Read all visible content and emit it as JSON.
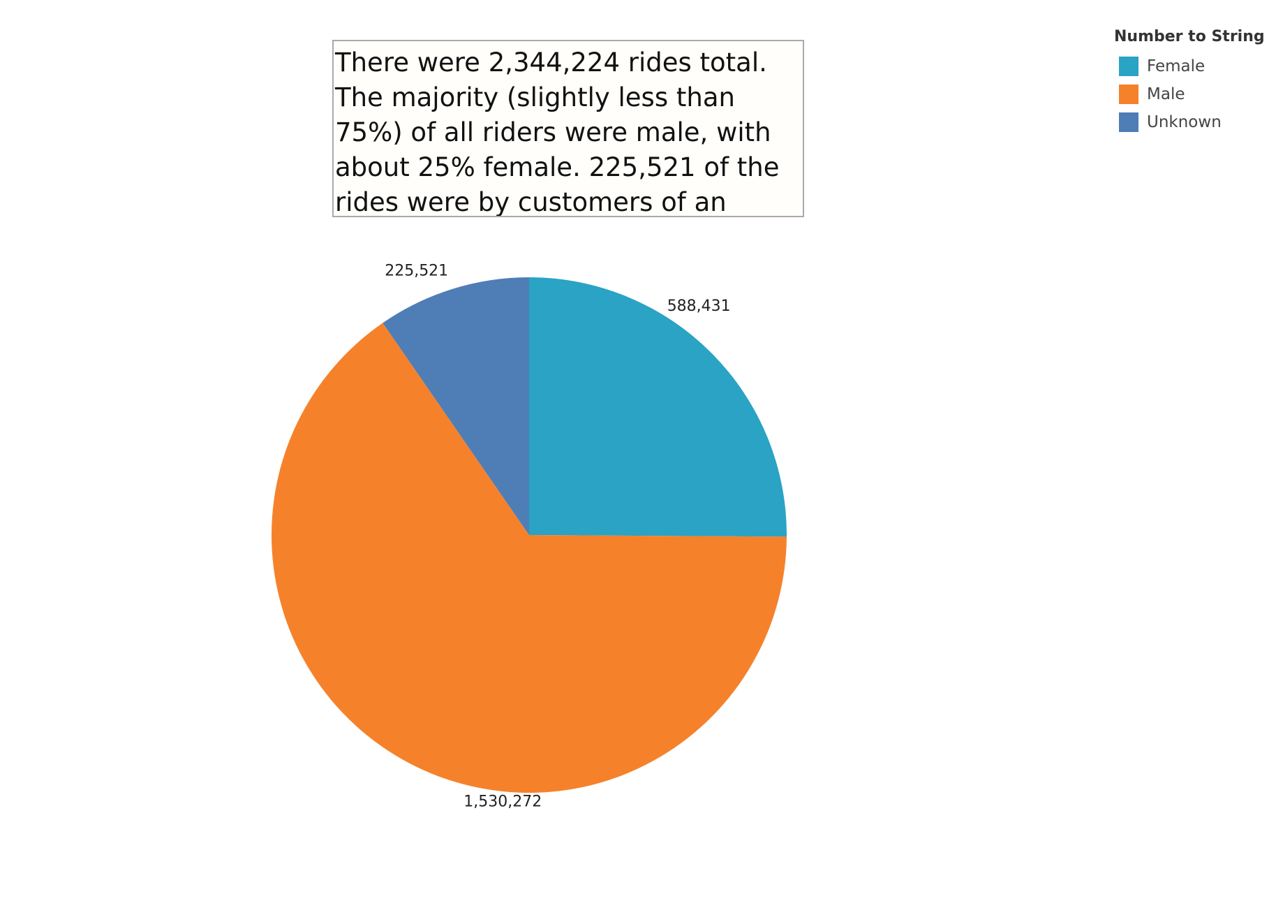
{
  "annotation": {
    "text": "There were 2,344,224 rides total. The majority (slightly less than 75%) of all riders were male, with about 25% female. 225,521 of the rides were by customers of an unknown gender."
  },
  "legend": {
    "title": "Number to String",
    "items": [
      {
        "label": "Female",
        "color": "#2aa3c4"
      },
      {
        "label": "Male",
        "color": "#f5822b"
      },
      {
        "label": "Unknown",
        "color": "#4f7db6"
      }
    ]
  },
  "chart_data": {
    "type": "pie",
    "title": "",
    "categories": [
      "Female",
      "Male",
      "Unknown"
    ],
    "values": [
      588431,
      1530272,
      225521
    ],
    "data_labels": [
      "588,431",
      "1,530,272",
      "225,521"
    ],
    "colors": [
      "#2aa3c4",
      "#f5822b",
      "#4f7db6"
    ],
    "start_angle": "12 o'clock",
    "direction": "clockwise",
    "legend_position": "top-right"
  }
}
